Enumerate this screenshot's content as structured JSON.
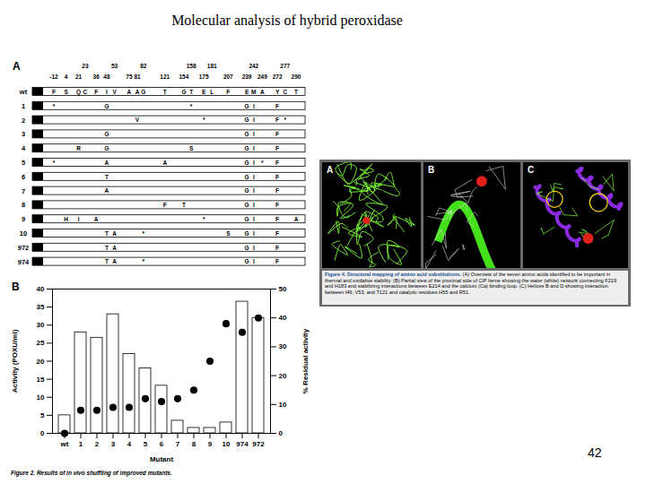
{
  "title": "Molecular analysis of hybrid peroxidase",
  "page_number": 42,
  "panel_a": {
    "label": "A",
    "header_top": [
      23,
      53,
      82,
      158,
      181,
      242,
      277
    ],
    "header_bottom": [
      -12,
      4,
      21,
      36,
      48,
      75,
      81,
      121,
      154,
      175,
      207,
      239,
      249,
      272,
      290
    ],
    "rows": [
      {
        "name": "wt",
        "residues": [
          [
            -12,
            "F"
          ],
          [
            4,
            "S"
          ],
          [
            21,
            "Q"
          ],
          [
            23,
            "C"
          ],
          [
            36,
            "F"
          ],
          [
            48,
            "I"
          ],
          [
            53,
            "V"
          ],
          [
            75,
            "A"
          ],
          [
            81,
            "A"
          ],
          [
            82,
            "G"
          ],
          [
            121,
            "T"
          ],
          [
            154,
            "G"
          ],
          [
            158,
            "T"
          ],
          [
            175,
            "E"
          ],
          [
            181,
            "L"
          ],
          [
            207,
            "F"
          ],
          [
            239,
            "E"
          ],
          [
            242,
            "M"
          ],
          [
            249,
            "A"
          ],
          [
            272,
            "Y"
          ],
          [
            277,
            "C"
          ],
          [
            290,
            "T"
          ]
        ]
      },
      {
        "name": "1",
        "residues": [
          [
            -12,
            "*"
          ],
          [
            48,
            "G"
          ],
          [
            158,
            "*"
          ],
          [
            239,
            "G"
          ],
          [
            242,
            "I"
          ],
          [
            272,
            "F"
          ]
        ]
      },
      {
        "name": "2",
        "residues": [
          [
            81,
            "V"
          ],
          [
            175,
            "*"
          ],
          [
            239,
            "G"
          ],
          [
            242,
            "I"
          ],
          [
            272,
            "F"
          ],
          [
            277,
            "*"
          ]
        ]
      },
      {
        "name": "3",
        "residues": [
          [
            48,
            "G"
          ],
          [
            239,
            "G"
          ],
          [
            242,
            "I"
          ],
          [
            272,
            "F"
          ]
        ]
      },
      {
        "name": "4",
        "residues": [
          [
            21,
            "R"
          ],
          [
            48,
            "G"
          ],
          [
            158,
            "S"
          ],
          [
            239,
            "G"
          ],
          [
            242,
            "I"
          ],
          [
            272,
            "F"
          ]
        ]
      },
      {
        "name": "5",
        "residues": [
          [
            -12,
            "*"
          ],
          [
            48,
            "A"
          ],
          [
            121,
            "A"
          ],
          [
            239,
            "G"
          ],
          [
            242,
            "I"
          ],
          [
            249,
            "*"
          ],
          [
            272,
            "F"
          ]
        ]
      },
      {
        "name": "6",
        "residues": [
          [
            48,
            "T"
          ],
          [
            239,
            "G"
          ],
          [
            242,
            "I"
          ],
          [
            272,
            "F"
          ]
        ]
      },
      {
        "name": "7",
        "residues": [
          [
            48,
            "A"
          ],
          [
            239,
            "G"
          ],
          [
            242,
            "I"
          ],
          [
            272,
            "F"
          ]
        ]
      },
      {
        "name": "8",
        "residues": [
          [
            121,
            "F"
          ],
          [
            154,
            "T"
          ],
          [
            239,
            "G"
          ],
          [
            242,
            "I"
          ],
          [
            272,
            "F"
          ]
        ]
      },
      {
        "name": "9",
        "residues": [
          [
            4,
            "H"
          ],
          [
            21,
            "I"
          ],
          [
            36,
            "A"
          ],
          [
            175,
            "*"
          ],
          [
            239,
            "G"
          ],
          [
            242,
            "I"
          ],
          [
            272,
            "F"
          ],
          [
            290,
            "A"
          ]
        ]
      },
      {
        "name": "10",
        "residues": [
          [
            48,
            "T"
          ],
          [
            53,
            "A"
          ],
          [
            82,
            "*"
          ],
          [
            207,
            "S"
          ],
          [
            239,
            "G"
          ],
          [
            242,
            "I"
          ],
          [
            272,
            "F"
          ]
        ]
      },
      {
        "name": "972",
        "residues": [
          [
            48,
            "T"
          ],
          [
            53,
            "A"
          ],
          [
            239,
            "G"
          ],
          [
            242,
            "I"
          ],
          [
            272,
            "F"
          ]
        ]
      },
      {
        "name": "974",
        "residues": [
          [
            48,
            "T"
          ],
          [
            53,
            "A"
          ],
          [
            82,
            "*"
          ],
          [
            239,
            "G"
          ],
          [
            242,
            "I"
          ],
          [
            272,
            "F"
          ]
        ]
      }
    ]
  },
  "chart_data": {
    "type": "bar",
    "label": "B",
    "caption": "Figure 2. Results of in vivo shuffling of improved mutants.",
    "categories": [
      "wt",
      "1",
      "2",
      "3",
      "4",
      "5",
      "6",
      "7",
      "8",
      "9",
      "10",
      "974",
      "972"
    ],
    "series": [
      {
        "type": "bar",
        "color": "#ffffff",
        "values": [
          5,
          28,
          26.5,
          33,
          22,
          18,
          13.2,
          3.5,
          1.5,
          1.5,
          3,
          36.5,
          32
        ]
      },
      {
        "type": "scatter",
        "axis": "y2",
        "color": "#000000",
        "marker": "circle",
        "values": [
          0,
          8,
          8,
          9,
          9,
          12,
          11,
          12,
          15,
          25,
          38,
          35,
          40
        ]
      }
    ],
    "xlabel": "Mutant",
    "ylabel": "Activity (POXU/ml)",
    "y2label": "% Residual activity",
    "ylim": [
      0,
      40
    ],
    "yticks": [
      0,
      5,
      10,
      15,
      20,
      25,
      30,
      35,
      40
    ],
    "y2lim": [
      0,
      50
    ],
    "y2ticks": [
      0,
      10,
      20,
      30,
      40,
      50
    ]
  },
  "figure4": {
    "panels": [
      "A",
      "B",
      "C"
    ],
    "caption_title": "Figure 4. Structural mapping of amino acid substitutions.",
    "caption_text": "(A) Overview of the seven amino acids identified to be important in thermal and oxidative stability. (B) Partial view of the proximal side of CiP heme showing the water (white) network connecting F219 and H183 and stabilizing interactions between E214 and the calcium (Ca) binding loop. (C) Helices B and D showing interaction between I49, V53, and T121 and catalytic residues H55 and R51."
  }
}
